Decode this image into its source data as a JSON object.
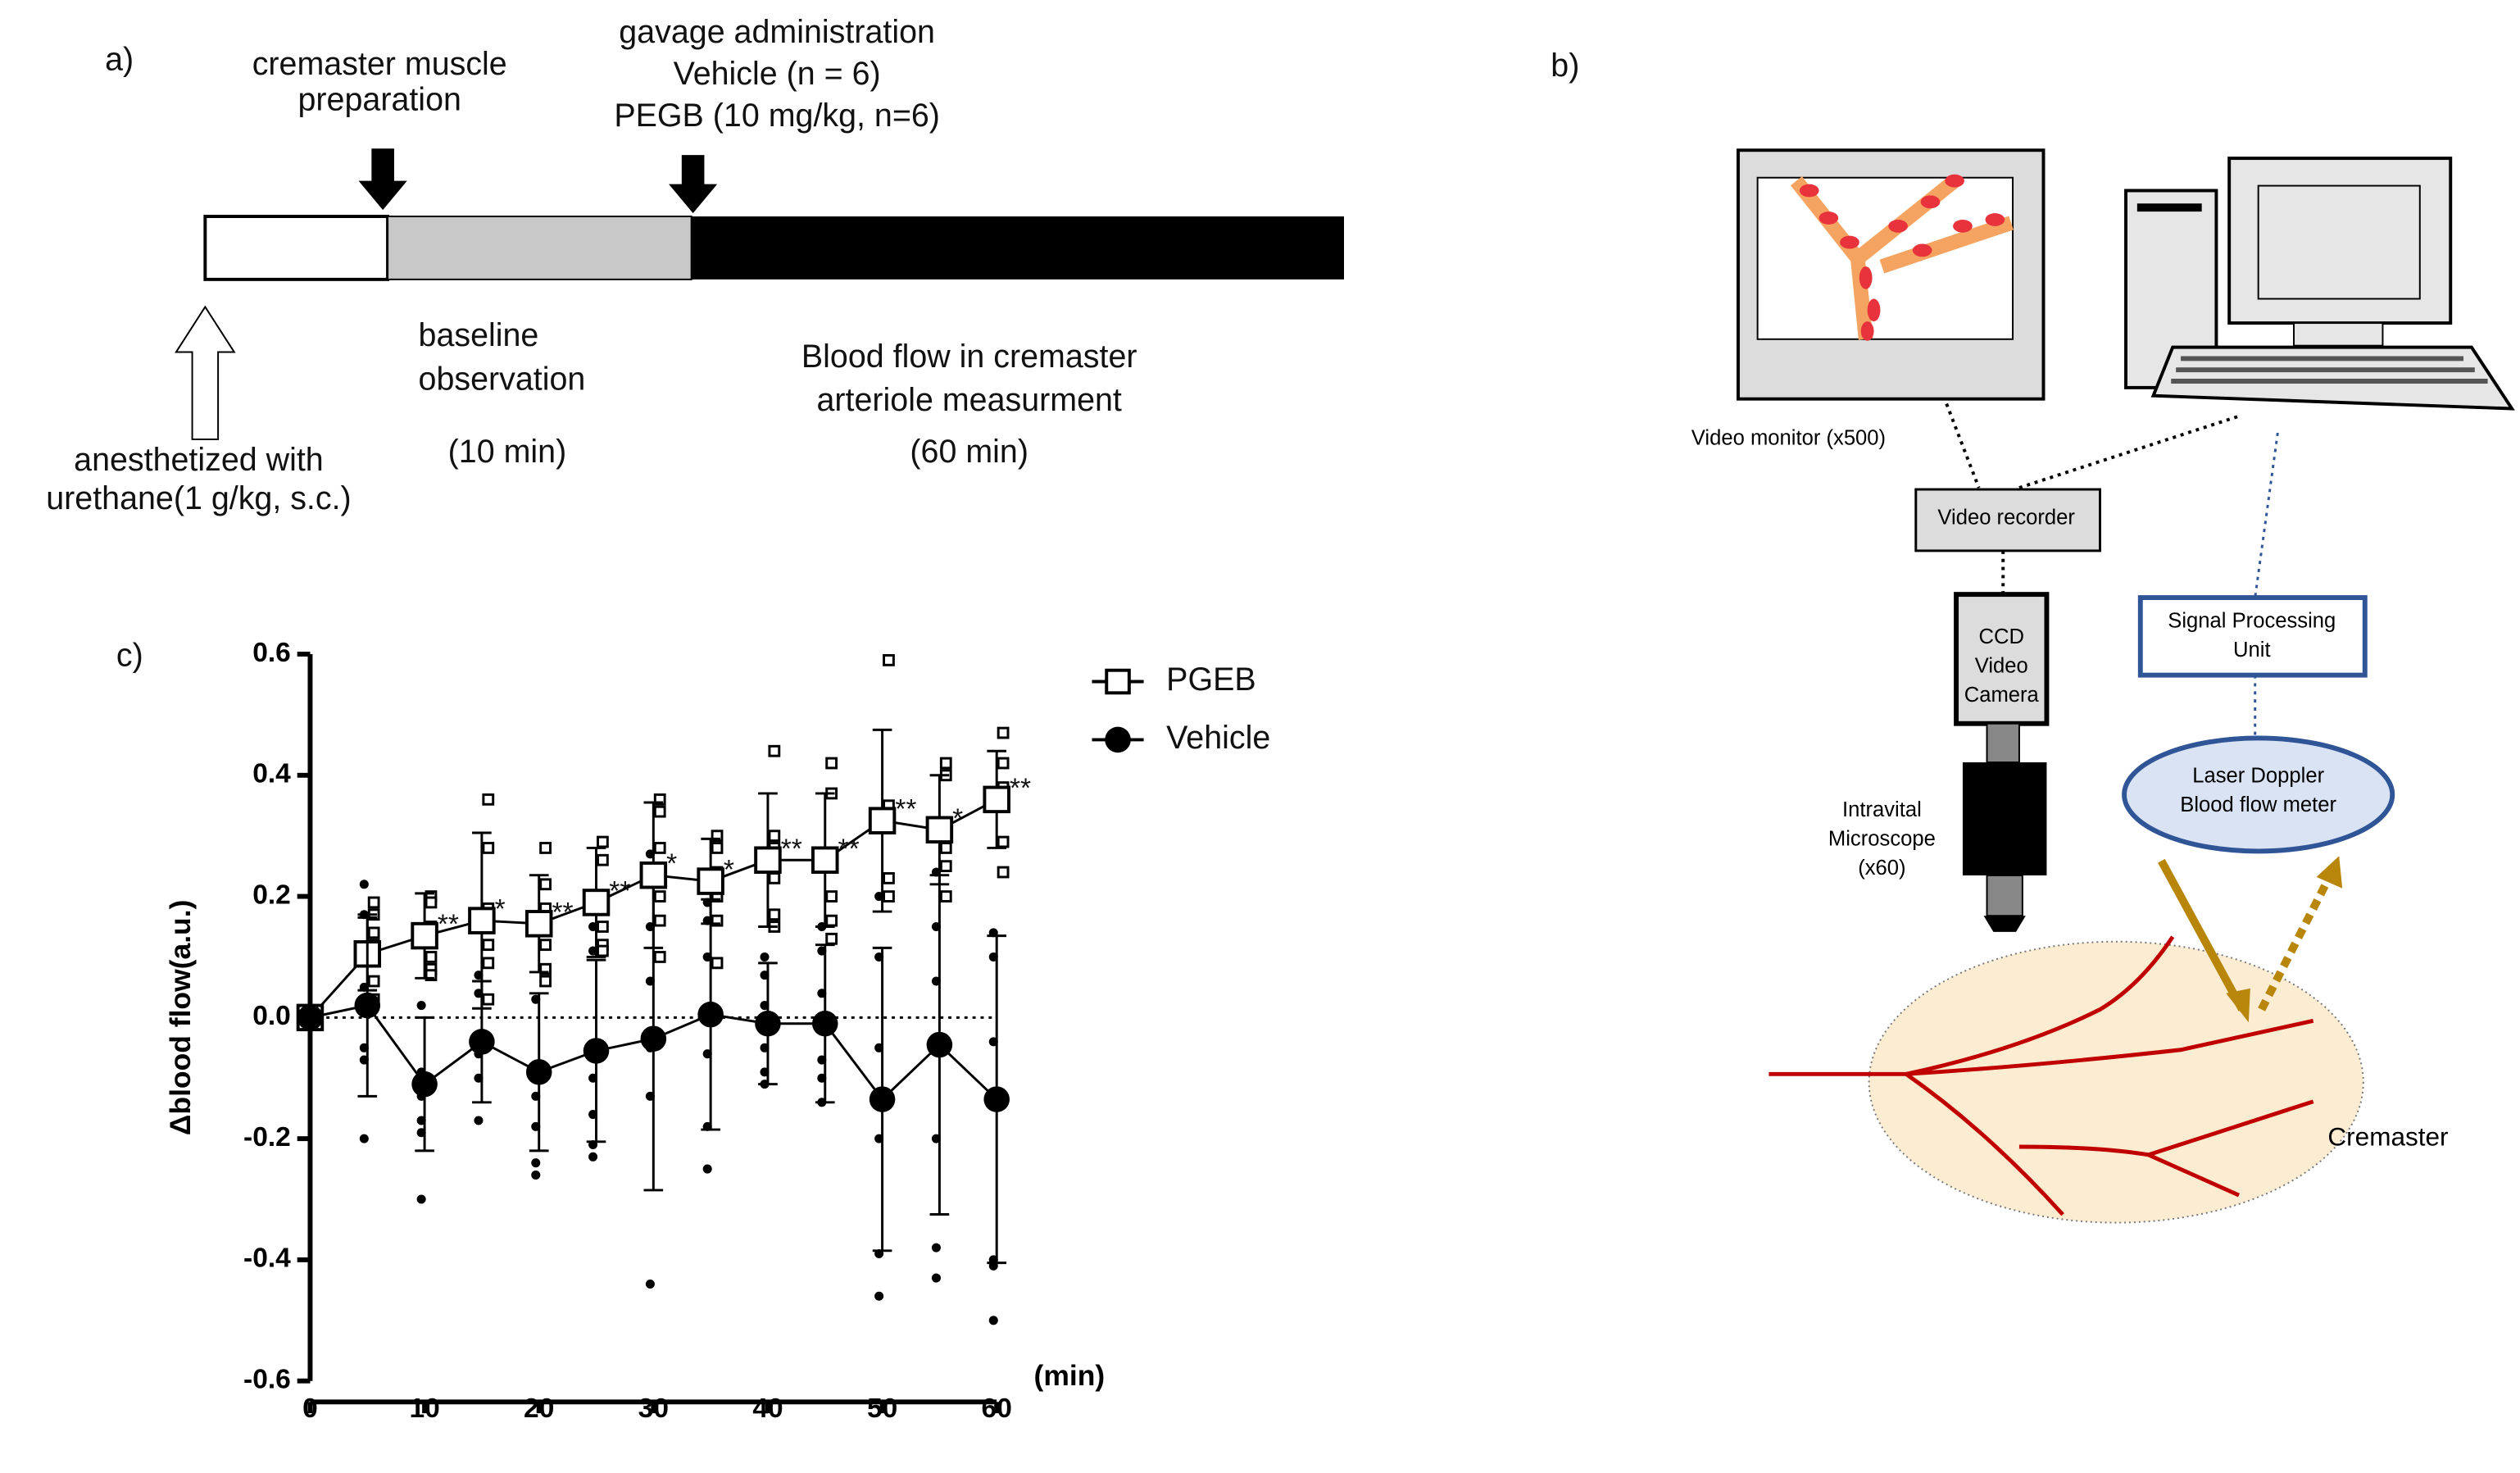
{
  "panel_labels": [
    "a)",
    "b)",
    "c)"
  ],
  "timeline": {
    "preparation": [
      "cremaster muscle",
      "preparation"
    ],
    "gavage": [
      "gavage administration",
      "Vehicle (n = 6)",
      "PEGB (10 mg/kg, n=6)"
    ],
    "baseline": [
      "baseline",
      "observation"
    ],
    "baseline_duration": "(10 min)",
    "measurement": [
      "Blood flow  in cremaster",
      "arteriole measurment"
    ],
    "measurement_duration": "(60 min)",
    "anesthesia": [
      "anesthetized with",
      "urethane(1  g/kg, s.c.)"
    ]
  },
  "diagram": {
    "video_monitor": "Video monitor (x500)",
    "video_recorder": "Video recorder",
    "camera": [
      "CCD",
      "Video",
      "Camera"
    ],
    "microscope": [
      "Intravital",
      "Microscope",
      "(x60)"
    ],
    "signal_unit": [
      "Signal Processing",
      "Unit"
    ],
    "laser_doppler": [
      "Laser Doppler",
      "Blood flow meter"
    ],
    "cremaster": "Cremaster"
  },
  "chart_data": {
    "type": "line",
    "ylabel": "Δblood flow(a.u.)",
    "xlabel": "(min)",
    "x": [
      0,
      5,
      10,
      15,
      20,
      25,
      30,
      35,
      40,
      45,
      50,
      55,
      60
    ],
    "xlim": [
      0,
      60
    ],
    "xticks": [
      0,
      10,
      20,
      30,
      40,
      50,
      60
    ],
    "ylim": [
      -0.6,
      0.6
    ],
    "yticks": [
      0.6,
      0.4,
      0.2,
      {
        "value": 0,
        "label": "0.0"
      },
      -0.2,
      -0.4,
      -0.6
    ],
    "annotations": [
      null,
      null,
      "**",
      "*",
      "**",
      "**",
      "*",
      "*",
      "**",
      "**",
      "**",
      "*",
      "**"
    ],
    "series": [
      {
        "name": "PGEB",
        "color": "#000000",
        "marker": "open-square",
        "values": [
          0,
          0.105,
          0.135,
          0.16,
          0.155,
          0.19,
          0.235,
          0.225,
          0.26,
          0.26,
          0.325,
          0.31,
          0.36
        ],
        "errors": [
          0,
          0.06,
          0.07,
          0.145,
          0.08,
          0.09,
          0.12,
          0.07,
          0.11,
          0.11,
          0.15,
          0.09,
          0.08
        ],
        "points": [
          [],
          [
            0.19,
            0.17,
            0.14,
            0.12,
            0.06,
            0.03
          ],
          [
            0.2,
            0.19,
            0.15,
            0.1,
            0.08,
            0.07
          ],
          [
            0.36,
            0.28,
            0.18,
            0.12,
            0.09,
            0.03
          ],
          [
            0.28,
            0.22,
            0.18,
            0.12,
            0.08,
            0.06
          ],
          [
            0.29,
            0.26,
            0.2,
            0.15,
            0.12,
            0.11
          ],
          [
            0.36,
            0.34,
            0.28,
            0.2,
            0.16,
            0.1
          ],
          [
            0.3,
            0.28,
            0.24,
            0.2,
            0.16,
            0.09
          ],
          [
            0.44,
            0.3,
            0.28,
            0.23,
            0.17,
            0.15
          ],
          [
            0.42,
            0.37,
            0.25,
            0.2,
            0.16,
            0.13
          ],
          [
            0.59,
            0.35,
            0.33,
            0.32,
            0.23,
            0.2
          ],
          [
            0.42,
            0.4,
            0.3,
            0.28,
            0.25,
            0.2
          ],
          [
            0.47,
            0.42,
            0.38,
            0.35,
            0.29,
            0.24
          ]
        ]
      },
      {
        "name": "Vehicle",
        "color": "#000000",
        "marker": "filled-circle",
        "values": [
          0,
          0.02,
          -0.11,
          -0.04,
          -0.09,
          -0.055,
          -0.035,
          0.005,
          -0.01,
          -0.01,
          -0.135,
          -0.045,
          -0.135
        ],
        "errors": [
          0,
          0.15,
          0.11,
          0.1,
          0.13,
          0.15,
          0.25,
          0.19,
          0.1,
          0.13,
          0.25,
          0.28,
          0.27
        ],
        "points": [
          [],
          [
            0.22,
            0.17,
            0.05,
            -0.05,
            -0.07,
            -0.2
          ],
          [
            0.02,
            -0.09,
            -0.13,
            -0.17,
            -0.19,
            -0.3
          ],
          [
            0.07,
            0.04,
            -0.03,
            -0.06,
            -0.1,
            -0.17
          ],
          [
            0.03,
            -0.09,
            -0.13,
            -0.18,
            -0.24,
            -0.26
          ],
          [
            0.15,
            0.11,
            -0.1,
            -0.16,
            -0.21,
            -0.23
          ],
          [
            0.27,
            0.15,
            0.06,
            -0.05,
            -0.13,
            -0.44
          ],
          [
            0.19,
            0.16,
            0.1,
            -0.06,
            -0.18,
            -0.25
          ],
          [
            0.1,
            0.07,
            0.02,
            -0.05,
            -0.09,
            -0.11
          ],
          [
            0.15,
            0.11,
            0.04,
            -0.07,
            -0.1,
            -0.14
          ],
          [
            0.2,
            0.1,
            -0.05,
            -0.2,
            -0.39,
            -0.46
          ],
          [
            0.24,
            0.15,
            0.06,
            -0.2,
            -0.38,
            -0.43
          ],
          [
            0.14,
            0.1,
            -0.04,
            -0.4,
            -0.41,
            -0.5
          ]
        ]
      }
    ]
  }
}
